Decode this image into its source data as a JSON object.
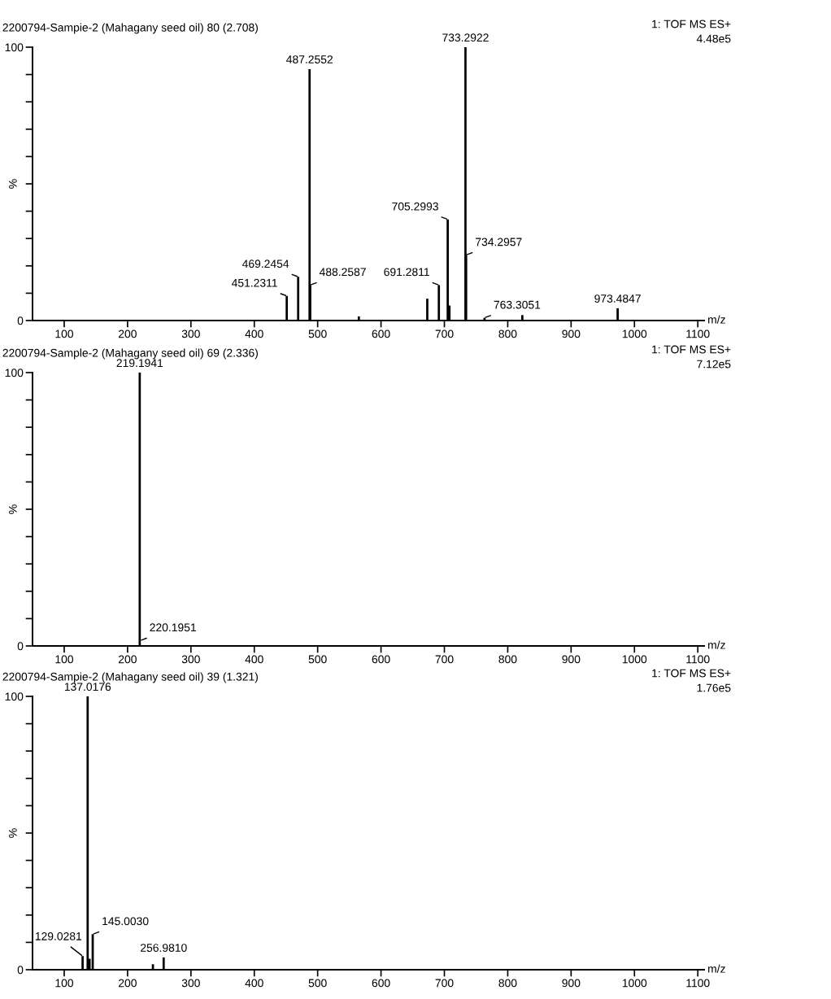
{
  "chart_data": [
    {
      "type": "bar",
      "title": "2200794-Sampie-2 (Mahagany seed oil) 80 (2.708)",
      "xlabel": "m/z",
      "ylabel": "%",
      "color": "#000000",
      "x": [
        451.2311,
        469.2454,
        487.2552,
        488.2587,
        565,
        673,
        691.2811,
        705.2993,
        708,
        733.2922,
        734.2957,
        763.3051,
        823,
        973.4847
      ],
      "values": [
        9,
        16,
        92,
        13,
        1.5,
        8,
        13,
        37,
        5.5,
        100,
        24,
        1,
        2,
        4.5
      ],
      "xlim": [
        50,
        1110
      ],
      "xticks": [
        100,
        200,
        300,
        400,
        500,
        600,
        700,
        800,
        900,
        1000,
        1100
      ],
      "ylim": [
        0,
        100
      ],
      "yticks": [
        0,
        {
          "value": 10,
          "label": null
        },
        {
          "value": 20,
          "label": null
        },
        {
          "value": 30,
          "label": null
        },
        {
          "value": 40,
          "label": null
        },
        {
          "value": 50,
          "label": null
        },
        {
          "value": 60,
          "label": null
        },
        {
          "value": 70,
          "label": null
        },
        {
          "value": 80,
          "label": null
        },
        {
          "value": 90,
          "label": null
        },
        100
      ],
      "annotations": [
        "1: TOF MS ES+",
        "4.48e5",
        {
          "text": "451.2311",
          "x": 451.2311,
          "y": 9
        },
        {
          "text": "469.2454",
          "x": 469.2454,
          "y": 16
        },
        {
          "text": "487.2552",
          "x": 487.2552,
          "y": 92
        },
        {
          "text": "488.2587",
          "x": 488.2587,
          "y": 13
        },
        {
          "text": "691.2811",
          "x": 691.2811,
          "y": 13
        },
        {
          "text": "705.2993",
          "x": 705.2993,
          "y": 37
        },
        {
          "text": "733.2922",
          "x": 733.2922,
          "y": 100
        },
        {
          "text": "734.2957",
          "x": 734.2957,
          "y": 24
        },
        {
          "text": "763.3051",
          "x": 763.3051,
          "y": 1
        },
        {
          "text": "973.4847",
          "x": 973.4847,
          "y": 4.5
        }
      ]
    },
    {
      "type": "bar",
      "title": "2200794-Sample-2 (Mahagany seed oil) 69 (2.336)",
      "xlabel": "m/z",
      "ylabel": "%",
      "color": "#000000",
      "x": [
        219.1941
      ],
      "values": [
        100
      ],
      "xlim": [
        50,
        1110
      ],
      "xticks": [
        100,
        200,
        300,
        400,
        500,
        600,
        700,
        800,
        900,
        1000,
        1100
      ],
      "ylim": [
        0,
        100
      ],
      "yticks": [
        0,
        {
          "value": 10,
          "label": null
        },
        {
          "value": 20,
          "label": null
        },
        {
          "value": 30,
          "label": null
        },
        {
          "value": 40,
          "label": null
        },
        {
          "value": 50,
          "label": null
        },
        {
          "value": 60,
          "label": null
        },
        {
          "value": 70,
          "label": null
        },
        {
          "value": 80,
          "label": null
        },
        {
          "value": 90,
          "label": null
        },
        100
      ],
      "annotations": [
        "1: TOF MS ES+",
        "7.12e5",
        {
          "text": "219.1941",
          "x": 219.1941,
          "y": 100
        },
        {
          "text": "220.1951",
          "x": 220.1951,
          "y": 2
        }
      ]
    },
    {
      "type": "bar",
      "title": "2200794-Sampie-2 (Mahagany seed oil) 39 (1.321)",
      "xlabel": "m/z",
      "ylabel": "%",
      "color": "#000000",
      "x": [
        129.0281,
        137.0176,
        140,
        145.003,
        240,
        256.981
      ],
      "values": [
        5,
        100,
        4,
        13,
        2,
        4.5
      ],
      "xlim": [
        50,
        1110
      ],
      "xticks": [
        100,
        200,
        300,
        400,
        500,
        600,
        700,
        800,
        900,
        1000,
        1100
      ],
      "ylim": [
        0,
        100
      ],
      "yticks": [
        0,
        {
          "value": 10,
          "label": null
        },
        {
          "value": 20,
          "label": null
        },
        {
          "value": 30,
          "label": null
        },
        {
          "value": 40,
          "label": null
        },
        {
          "value": 50,
          "label": null
        },
        {
          "value": 60,
          "label": null
        },
        {
          "value": 70,
          "label": null
        },
        {
          "value": 80,
          "label": null
        },
        {
          "value": 90,
          "label": null
        },
        100
      ],
      "annotations": [
        "1: TOF MS ES+",
        "1.76e5",
        {
          "text": "129.0281",
          "x": 129.0281,
          "y": 5
        },
        {
          "text": "137.0176",
          "x": 137.0176,
          "y": 100
        },
        {
          "text": "145.0030",
          "x": 145.003,
          "y": 13
        },
        {
          "text": "256.9810",
          "x": 256.981,
          "y": 4.5
        }
      ]
    }
  ]
}
